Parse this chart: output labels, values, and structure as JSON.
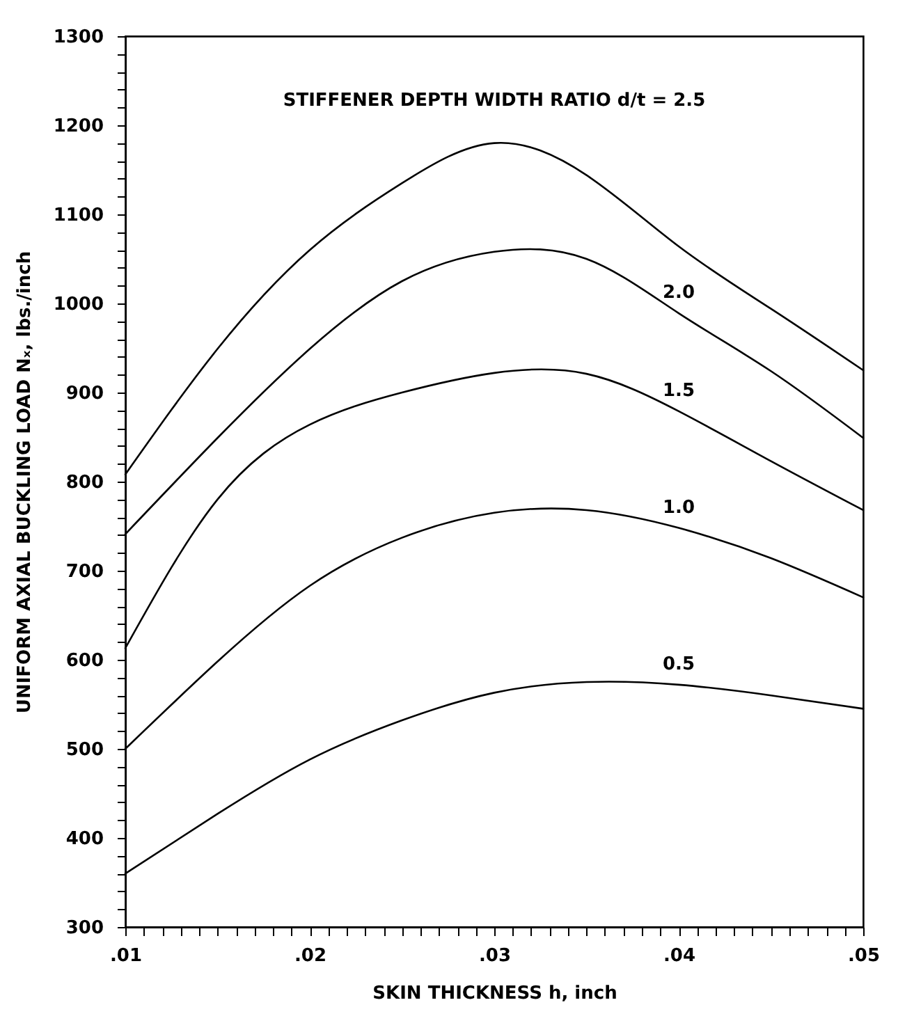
{
  "chart_data": {
    "type": "line",
    "xlabel": "SKIN THICKNESS h, inch",
    "ylabel": "UNIFORM AXIAL BUCKLING LOAD Nₓ, lbs./inch",
    "x": [
      0.01,
      0.015,
      0.02,
      0.025,
      0.03,
      0.035,
      0.04,
      0.045,
      0.05
    ],
    "series": [
      {
        "name": "STIFFENER DEPTH WIDTH RATIO  d/t = 2.5",
        "color": "#000000",
        "values": [
          808,
          949,
          1060,
          1135,
          1180,
          1144,
          1064,
          994,
          925
        ]
      },
      {
        "name": "2.0",
        "color": "#000000",
        "values": [
          741,
          849,
          949,
          1025,
          1058,
          1050,
          989,
          924,
          849
        ]
      },
      {
        "name": "1.5",
        "color": "#000000",
        "values": [
          613,
          780,
          864,
          900,
          922,
          921,
          879,
          823,
          768
        ]
      },
      {
        "name": "1.0",
        "color": "#000000",
        "values": [
          500,
          598,
          683,
          737,
          765,
          768,
          748,
          714,
          670
        ]
      },
      {
        "name": "0.5",
        "color": "#000000",
        "values": [
          360,
          427,
          488,
          532,
          563,
          575,
          572,
          560,
          545
        ]
      }
    ],
    "xlim": [
      0.01,
      0.05
    ],
    "xticks": [
      {
        "value": 0.01,
        "label": ".01"
      },
      {
        "value": 0.011,
        "label": null
      },
      {
        "value": 0.012,
        "label": null
      },
      {
        "value": 0.013,
        "label": null
      },
      {
        "value": 0.014,
        "label": null
      },
      {
        "value": 0.015,
        "label": null
      },
      {
        "value": 0.016,
        "label": null
      },
      {
        "value": 0.017,
        "label": null
      },
      {
        "value": 0.018,
        "label": null
      },
      {
        "value": 0.019,
        "label": null
      },
      {
        "value": 0.02,
        "label": ".02"
      },
      {
        "value": 0.021,
        "label": null
      },
      {
        "value": 0.022,
        "label": null
      },
      {
        "value": 0.023,
        "label": null
      },
      {
        "value": 0.024,
        "label": null
      },
      {
        "value": 0.025,
        "label": null
      },
      {
        "value": 0.026,
        "label": null
      },
      {
        "value": 0.027,
        "label": null
      },
      {
        "value": 0.028,
        "label": null
      },
      {
        "value": 0.029,
        "label": null
      },
      {
        "value": 0.03,
        "label": ".03"
      },
      {
        "value": 0.031,
        "label": null
      },
      {
        "value": 0.032,
        "label": null
      },
      {
        "value": 0.033,
        "label": null
      },
      {
        "value": 0.034,
        "label": null
      },
      {
        "value": 0.035,
        "label": null
      },
      {
        "value": 0.036,
        "label": null
      },
      {
        "value": 0.037,
        "label": null
      },
      {
        "value": 0.038,
        "label": null
      },
      {
        "value": 0.039,
        "label": null
      },
      {
        "value": 0.04,
        "label": ".04"
      },
      {
        "value": 0.041,
        "label": null
      },
      {
        "value": 0.042,
        "label": null
      },
      {
        "value": 0.043,
        "label": null
      },
      {
        "value": 0.044,
        "label": null
      },
      {
        "value": 0.045,
        "label": null
      },
      {
        "value": 0.046,
        "label": null
      },
      {
        "value": 0.047,
        "label": null
      },
      {
        "value": 0.048,
        "label": null
      },
      {
        "value": 0.049,
        "label": null
      },
      {
        "value": 0.05,
        "label": ".05"
      }
    ],
    "ylim": [
      300,
      1300
    ],
    "yticks": [
      300,
      {
        "value": 320,
        "label": null
      },
      {
        "value": 340,
        "label": null
      },
      {
        "value": 360,
        "label": null
      },
      {
        "value": 380,
        "label": null
      },
      400,
      {
        "value": 420,
        "label": null
      },
      {
        "value": 440,
        "label": null
      },
      {
        "value": 460,
        "label": null
      },
      {
        "value": 480,
        "label": null
      },
      500,
      {
        "value": 520,
        "label": null
      },
      {
        "value": 540,
        "label": null
      },
      {
        "value": 560,
        "label": null
      },
      {
        "value": 580,
        "label": null
      },
      600,
      {
        "value": 620,
        "label": null
      },
      {
        "value": 640,
        "label": null
      },
      {
        "value": 660,
        "label": null
      },
      {
        "value": 680,
        "label": null
      },
      700,
      {
        "value": 720,
        "label": null
      },
      {
        "value": 740,
        "label": null
      },
      {
        "value": 760,
        "label": null
      },
      {
        "value": 780,
        "label": null
      },
      800,
      {
        "value": 820,
        "label": null
      },
      {
        "value": 840,
        "label": null
      },
      {
        "value": 860,
        "label": null
      },
      {
        "value": 880,
        "label": null
      },
      900,
      {
        "value": 920,
        "label": null
      },
      {
        "value": 940,
        "label": null
      },
      {
        "value": 960,
        "label": null
      },
      {
        "value": 980,
        "label": null
      },
      1000,
      {
        "value": 1020,
        "label": null
      },
      {
        "value": 1040,
        "label": null
      },
      {
        "value": 1060,
        "label": null
      },
      {
        "value": 1080,
        "label": null
      },
      1100,
      {
        "value": 1120,
        "label": null
      },
      {
        "value": 1140,
        "label": null
      },
      {
        "value": 1160,
        "label": null
      },
      {
        "value": 1180,
        "label": null
      },
      1200,
      {
        "value": 1220,
        "label": null
      },
      {
        "value": 1240,
        "label": null
      },
      {
        "value": 1260,
        "label": null
      },
      {
        "value": 1280,
        "label": null
      },
      1300
    ],
    "grid": false,
    "legend": false,
    "marker": "none",
    "line_style": "solid"
  }
}
